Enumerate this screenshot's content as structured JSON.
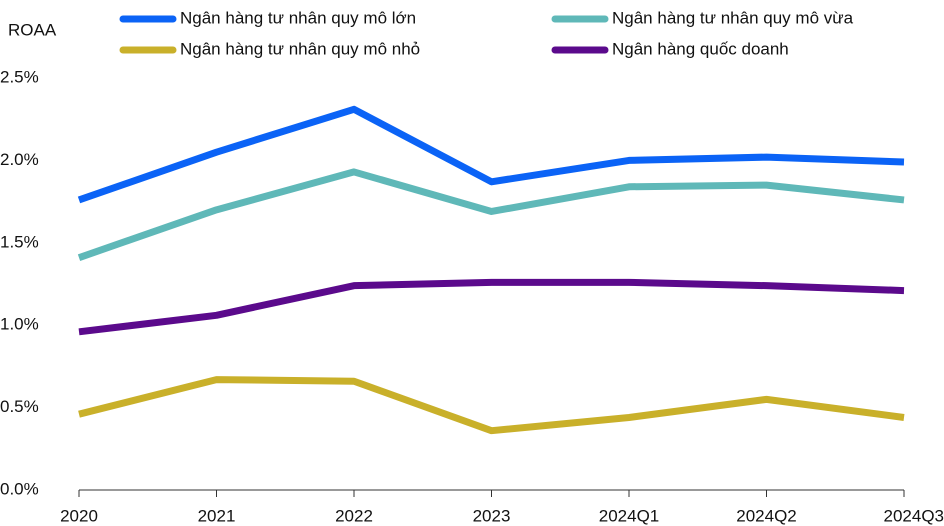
{
  "chart_data": {
    "type": "line",
    "y_label": "ROAA",
    "categories": [
      "2020",
      "2021",
      "2022",
      "2023",
      "2024Q1",
      "2024Q2",
      "2024Q3"
    ],
    "series": [
      {
        "name": "Ngân hàng tư nhân quy mô lớn",
        "color": "#0b63f6",
        "values": [
          1.76,
          2.05,
          2.31,
          1.87,
          2.0,
          2.02,
          1.99
        ]
      },
      {
        "name": "Ngân hàng tư nhân quy mô vừa",
        "color": "#5fb8b8",
        "values": [
          1.41,
          1.7,
          1.93,
          1.69,
          1.84,
          1.85,
          1.76
        ]
      },
      {
        "name": "Ngân hàng tư nhân quy mô nhỏ",
        "color": "#c9b02a",
        "values": [
          0.46,
          0.67,
          0.66,
          0.36,
          0.44,
          0.55,
          0.44
        ]
      },
      {
        "name": "Ngân hàng quốc doanh",
        "color": "#5b0a8c",
        "values": [
          0.96,
          1.06,
          1.24,
          1.26,
          1.26,
          1.24,
          1.21
        ]
      }
    ],
    "ylim": [
      0,
      2.5
    ],
    "yticks": [
      {
        "value": 0,
        "label": "0.0%"
      },
      {
        "value": 0.5,
        "label": "0.5%"
      },
      {
        "value": 1,
        "label": "1.0%"
      },
      {
        "value": 1.5,
        "label": "1.5%"
      },
      {
        "value": 2,
        "label": "2.0%"
      },
      {
        "value": 2.5,
        "label": "2.5%"
      }
    ],
    "grid": false
  }
}
